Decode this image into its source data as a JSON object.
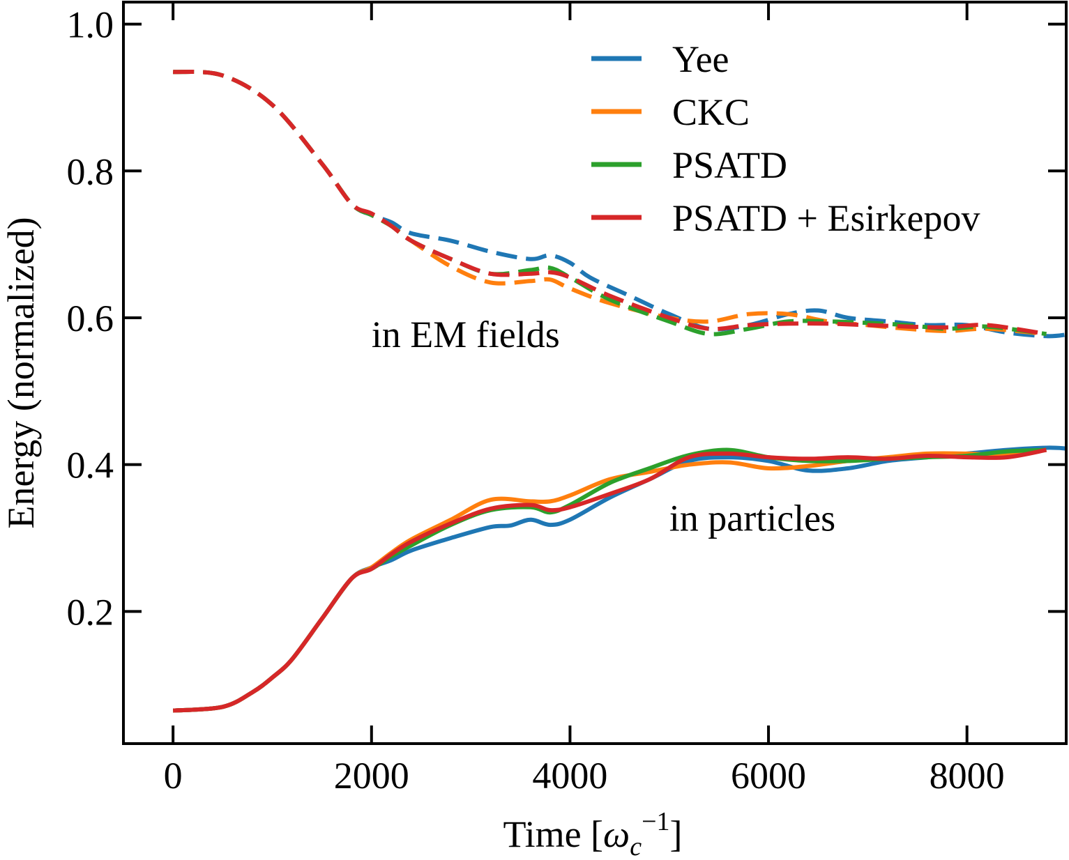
{
  "chart_data": {
    "type": "line",
    "xlabel_main": "Time [",
    "xlabel_symbol": "ω",
    "xlabel_sub": "c",
    "xlabel_sup": "−1",
    "xlabel_end": "]",
    "ylabel": "Energy (normalized)",
    "xlim": [
      -500,
      9000
    ],
    "ylim": [
      0.02,
      1.03
    ],
    "xticks": [
      0,
      2000,
      4000,
      6000,
      8000
    ],
    "xtick_labels": [
      "0",
      "2000",
      "4000",
      "6000",
      "8000"
    ],
    "yticks": [
      0.2,
      0.4,
      0.6,
      0.8,
      1.0
    ],
    "ytick_labels": [
      "0.2",
      "0.4",
      "0.6",
      "0.8",
      "1.0"
    ],
    "grid": false,
    "legend_position": "top-right",
    "annotations": [
      {
        "text": "in EM fields",
        "x": 2000,
        "y": 0.56
      },
      {
        "text": "in particles",
        "x": 5000,
        "y": 0.31
      }
    ],
    "series": [
      {
        "name": "Yee",
        "color": "#1f77b4",
        "fields_x": [
          0,
          500,
          1000,
          1500,
          1800,
          2000,
          2200,
          2400,
          2800,
          3200,
          3600,
          3800,
          4000,
          4200,
          4600,
          5000,
          5400,
          5800,
          6200,
          6500,
          6800,
          7200,
          7600,
          8000,
          8400,
          8800,
          9000
        ],
        "fields_y": [
          0.935,
          0.93,
          0.89,
          0.81,
          0.755,
          0.74,
          0.73,
          0.715,
          0.705,
          0.69,
          0.68,
          0.685,
          0.675,
          0.655,
          0.63,
          0.605,
          0.585,
          0.59,
          0.605,
          0.61,
          0.6,
          0.595,
          0.59,
          0.59,
          0.58,
          0.575,
          0.577
        ],
        "particles_x": [
          0,
          500,
          800,
          1000,
          1200,
          1500,
          1800,
          2000,
          2200,
          2400,
          2800,
          3200,
          3400,
          3600,
          3800,
          4000,
          4400,
          4800,
          5200,
          5600,
          6000,
          6400,
          6800,
          7200,
          7600,
          8000,
          8400,
          8800,
          9000
        ],
        "particles_y": [
          0.065,
          0.07,
          0.09,
          0.11,
          0.135,
          0.19,
          0.245,
          0.26,
          0.27,
          0.283,
          0.3,
          0.315,
          0.317,
          0.325,
          0.318,
          0.325,
          0.355,
          0.38,
          0.405,
          0.41,
          0.405,
          0.392,
          0.395,
          0.405,
          0.41,
          0.415,
          0.42,
          0.423,
          0.422
        ]
      },
      {
        "name": "CKC",
        "color": "#ff7f0e",
        "fields_x": [
          0,
          500,
          1000,
          1500,
          1800,
          2000,
          2200,
          2400,
          2800,
          3200,
          3600,
          3800,
          4000,
          4400,
          5000,
          5400,
          5800,
          6200,
          6600,
          7000,
          7400,
          7800,
          8200,
          8800
        ],
        "fields_y": [
          0.935,
          0.93,
          0.89,
          0.81,
          0.755,
          0.74,
          0.725,
          0.705,
          0.67,
          0.648,
          0.65,
          0.652,
          0.64,
          0.62,
          0.6,
          0.595,
          0.605,
          0.605,
          0.595,
          0.59,
          0.585,
          0.582,
          0.585,
          0.578
        ],
        "particles_x": [
          0,
          500,
          800,
          1000,
          1200,
          1500,
          1800,
          2000,
          2200,
          2400,
          2800,
          3200,
          3600,
          3800,
          4000,
          4400,
          4800,
          5200,
          5600,
          6000,
          6400,
          6800,
          7200,
          7600,
          8000,
          8400,
          8800
        ],
        "particles_y": [
          0.065,
          0.07,
          0.09,
          0.11,
          0.135,
          0.19,
          0.245,
          0.26,
          0.28,
          0.298,
          0.325,
          0.352,
          0.35,
          0.35,
          0.358,
          0.38,
          0.39,
          0.4,
          0.403,
          0.395,
          0.398,
          0.405,
          0.41,
          0.415,
          0.415,
          0.413,
          0.42
        ]
      },
      {
        "name": "PSATD",
        "color": "#2ca02c",
        "fields_x": [
          0,
          500,
          1000,
          1500,
          1800,
          2000,
          2200,
          2400,
          2800,
          3200,
          3600,
          3800,
          4000,
          4400,
          5000,
          5400,
          5800,
          6200,
          6600,
          7000,
          7400,
          7800,
          8200,
          8800
        ],
        "fields_y": [
          0.935,
          0.93,
          0.89,
          0.81,
          0.755,
          0.74,
          0.725,
          0.705,
          0.68,
          0.66,
          0.665,
          0.668,
          0.655,
          0.625,
          0.595,
          0.578,
          0.585,
          0.595,
          0.595,
          0.593,
          0.59,
          0.585,
          0.588,
          0.578
        ],
        "particles_x": [
          0,
          500,
          800,
          1000,
          1200,
          1500,
          1800,
          2000,
          2200,
          2400,
          2800,
          3200,
          3600,
          3800,
          4000,
          4400,
          4800,
          5200,
          5600,
          6000,
          6400,
          6800,
          7200,
          7600,
          8000,
          8400,
          8800
        ],
        "particles_y": [
          0.065,
          0.07,
          0.09,
          0.11,
          0.135,
          0.19,
          0.245,
          0.258,
          0.275,
          0.29,
          0.318,
          0.338,
          0.342,
          0.335,
          0.345,
          0.375,
          0.395,
          0.413,
          0.42,
          0.41,
          0.405,
          0.405,
          0.408,
          0.41,
          0.412,
          0.418,
          0.42
        ]
      },
      {
        "name": "PSATD + Esirkepov",
        "color": "#d62728",
        "fields_x": [
          0,
          500,
          1000,
          1500,
          1800,
          2000,
          2200,
          2400,
          2800,
          3200,
          3600,
          3800,
          4000,
          4400,
          5000,
          5400,
          5800,
          6200,
          6600,
          7000,
          7400,
          7800,
          8200,
          8800
        ],
        "fields_y": [
          0.935,
          0.93,
          0.89,
          0.81,
          0.755,
          0.742,
          0.725,
          0.705,
          0.68,
          0.66,
          0.66,
          0.662,
          0.655,
          0.63,
          0.6,
          0.585,
          0.59,
          0.592,
          0.592,
          0.59,
          0.588,
          0.587,
          0.59,
          0.578
        ],
        "particles_x": [
          0,
          500,
          800,
          1000,
          1200,
          1500,
          1800,
          2000,
          2200,
          2400,
          2800,
          3200,
          3600,
          3800,
          4000,
          4400,
          4800,
          5200,
          5600,
          6000,
          6400,
          6800,
          7200,
          7600,
          8000,
          8400,
          8800
        ],
        "particles_y": [
          0.065,
          0.07,
          0.09,
          0.11,
          0.135,
          0.19,
          0.245,
          0.258,
          0.278,
          0.295,
          0.32,
          0.34,
          0.345,
          0.338,
          0.342,
          0.36,
          0.38,
          0.41,
          0.415,
          0.41,
          0.408,
          0.41,
          0.408,
          0.412,
          0.41,
          0.41,
          0.42
        ]
      }
    ]
  }
}
